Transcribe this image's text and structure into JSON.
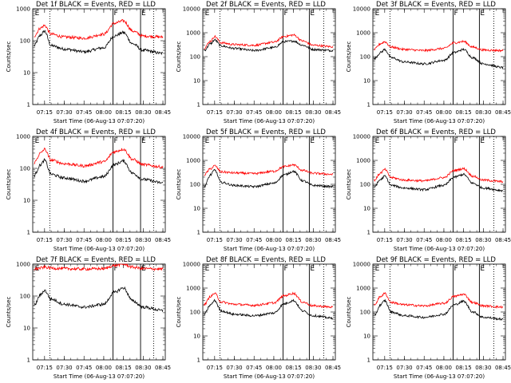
{
  "figure": {
    "start_time_label": "Start Time (06-Aug-13 07:07:20)",
    "ylabel": "Counts/sec",
    "colors": {
      "events": "#000000",
      "lld": "#ff0000",
      "axes": "#000000",
      "background": "#ffffff"
    }
  },
  "chart_data": [
    {
      "type": "line",
      "title": "Det 1f BLACK = Events, RED = LLD",
      "xlabel": "Start Time (06-Aug-13 07:07:20)",
      "ylabel": "Counts/sec",
      "xlim": [
        7.1,
        8.78
      ],
      "ylim": [
        1,
        1000
      ],
      "yscale": "log",
      "ytick_labels": [
        "1",
        "10",
        "100",
        "1000"
      ],
      "xtick_labels": [
        "07:15",
        "07:30",
        "07:45",
        "08:00",
        "08:15",
        "08:30",
        "08:45"
      ],
      "time_markers": [
        {
          "label": "E",
          "time": "07:07"
        },
        {
          "label": "F",
          "time": "08:07"
        },
        {
          "label": "E",
          "time": "08:28"
        }
      ],
      "solid_lines": [
        "08:07",
        "08:28"
      ],
      "dotted_lines": [
        "07:19",
        "08:38"
      ],
      "series": [
        {
          "name": "Events",
          "color": "#000000",
          "x": [
            "07:07",
            "07:12",
            "07:15",
            "07:20",
            "07:30",
            "07:45",
            "08:00",
            "08:08",
            "08:15",
            "08:22",
            "08:30",
            "08:45"
          ],
          "values": [
            70,
            150,
            200,
            70,
            55,
            45,
            60,
            140,
            180,
            80,
            50,
            40
          ]
        },
        {
          "name": "LLD",
          "color": "#ff0000",
          "x": [
            "07:07",
            "07:12",
            "07:15",
            "07:20",
            "07:30",
            "07:45",
            "08:00",
            "08:08",
            "08:15",
            "08:22",
            "08:30",
            "08:45"
          ],
          "values": [
            140,
            250,
            300,
            160,
            130,
            120,
            160,
            350,
            420,
            200,
            140,
            130
          ]
        }
      ]
    },
    {
      "type": "line",
      "title": "Det 2f BLACK = Events, RED = LLD",
      "xlabel": "Start Time (06-Aug-13 07:07:20)",
      "ylabel": "Counts/sec",
      "xlim": [
        7.1,
        8.78
      ],
      "ylim": [
        1,
        10000
      ],
      "yscale": "log",
      "ytick_labels": [
        "1",
        "10",
        "100",
        "1000",
        "10000"
      ],
      "xtick_labels": [
        "07:15",
        "07:30",
        "07:45",
        "08:00",
        "08:15",
        "08:30",
        "08:45"
      ],
      "time_markers": [
        {
          "label": "E",
          "time": "07:07"
        },
        {
          "label": "F",
          "time": "08:07"
        },
        {
          "label": "E",
          "time": "08:27"
        }
      ],
      "solid_lines": [
        "08:07",
        "08:27"
      ],
      "dotted_lines": [
        "07:19",
        "08:38"
      ],
      "series": [
        {
          "name": "Events",
          "color": "#000000",
          "x": [
            "07:07",
            "07:12",
            "07:15",
            "07:20",
            "07:30",
            "07:45",
            "08:00",
            "08:08",
            "08:15",
            "08:22",
            "08:30",
            "08:45"
          ],
          "values": [
            180,
            350,
            500,
            280,
            220,
            180,
            240,
            420,
            450,
            300,
            200,
            180
          ]
        },
        {
          "name": "LLD",
          "color": "#ff0000",
          "x": [
            "07:07",
            "07:12",
            "07:15",
            "07:20",
            "07:30",
            "07:45",
            "08:00",
            "08:08",
            "08:15",
            "08:22",
            "08:30",
            "08:45"
          ],
          "values": [
            230,
            450,
            700,
            380,
            320,
            300,
            400,
            700,
            800,
            450,
            300,
            260
          ]
        }
      ]
    },
    {
      "type": "line",
      "title": "Det 3f BLACK = Events, RED = LLD",
      "xlabel": "Start Time (06-Aug-13 07:07:20)",
      "ylabel": "Counts/sec",
      "xlim": [
        7.1,
        8.78
      ],
      "ylim": [
        1,
        10000
      ],
      "yscale": "log",
      "ytick_labels": [
        "1",
        "10",
        "100",
        "1000",
        "10000"
      ],
      "xtick_labels": [
        "07:15",
        "07:30",
        "07:45",
        "08:00",
        "08:15",
        "08:30",
        "08:45"
      ],
      "time_markers": [
        {
          "label": "E",
          "time": "07:07"
        },
        {
          "label": "F",
          "time": "08:07"
        },
        {
          "label": "E",
          "time": "08:27"
        }
      ],
      "solid_lines": [
        "08:07",
        "08:27"
      ],
      "dotted_lines": [
        "07:19",
        "08:38"
      ],
      "series": [
        {
          "name": "Events",
          "color": "#000000",
          "x": [
            "07:07",
            "07:12",
            "07:15",
            "07:20",
            "07:30",
            "07:45",
            "08:00",
            "08:08",
            "08:15",
            "08:22",
            "08:30",
            "08:45"
          ],
          "values": [
            80,
            150,
            200,
            90,
            60,
            50,
            70,
            150,
            200,
            90,
            50,
            35
          ]
        },
        {
          "name": "LLD",
          "color": "#ff0000",
          "x": [
            "07:07",
            "07:12",
            "07:15",
            "07:20",
            "07:30",
            "07:45",
            "08:00",
            "08:08",
            "08:15",
            "08:22",
            "08:30",
            "08:45"
          ],
          "values": [
            200,
            350,
            420,
            250,
            200,
            180,
            220,
            380,
            430,
            250,
            190,
            180
          ]
        }
      ]
    },
    {
      "type": "line",
      "title": "Det 4f BLACK = Events, RED = LLD",
      "xlabel": "Start Time (06-Aug-13 07:07:20)",
      "ylabel": "Counts/sec",
      "xlim": [
        7.1,
        8.78
      ],
      "ylim": [
        1,
        1000
      ],
      "yscale": "log",
      "ytick_labels": [
        "1",
        "10",
        "100",
        "1000"
      ],
      "xtick_labels": [
        "07:15",
        "07:30",
        "07:45",
        "08:00",
        "08:15",
        "08:30",
        "08:45"
      ],
      "time_markers": [
        {
          "label": "E",
          "time": "07:07"
        },
        {
          "label": "F",
          "time": "08:07"
        },
        {
          "label": "E",
          "time": "08:28"
        }
      ],
      "solid_lines": [
        "08:07",
        "08:28"
      ],
      "dotted_lines": [
        "07:19",
        "08:38"
      ],
      "series": [
        {
          "name": "Events",
          "color": "#000000",
          "x": [
            "07:07",
            "07:12",
            "07:15",
            "07:20",
            "07:30",
            "07:45",
            "08:00",
            "08:08",
            "08:15",
            "08:22",
            "08:30",
            "08:45"
          ],
          "values": [
            60,
            130,
            180,
            65,
            50,
            40,
            55,
            130,
            170,
            70,
            45,
            35
          ]
        },
        {
          "name": "LLD",
          "color": "#ff0000",
          "x": [
            "07:07",
            "07:12",
            "07:15",
            "07:20",
            "07:30",
            "07:45",
            "08:00",
            "08:08",
            "08:15",
            "08:22",
            "08:30",
            "08:45"
          ],
          "values": [
            150,
            300,
            400,
            180,
            140,
            120,
            160,
            330,
            400,
            190,
            130,
            110
          ]
        }
      ]
    },
    {
      "type": "line",
      "title": "Det 5f BLACK = Events, RED = LLD",
      "xlabel": "Start Time (06-Aug-13 07:07:20)",
      "ylabel": "Counts/sec",
      "xlim": [
        7.1,
        8.78
      ],
      "ylim": [
        1,
        10000
      ],
      "yscale": "log",
      "ytick_labels": [
        "1",
        "10",
        "100",
        "1000",
        "10000"
      ],
      "xtick_labels": [
        "07:15",
        "07:30",
        "07:45",
        "08:00",
        "08:15",
        "08:30",
        "08:45"
      ],
      "time_markers": [
        {
          "label": "E",
          "time": "07:07"
        },
        {
          "label": "F",
          "time": "08:07"
        },
        {
          "label": "E",
          "time": "08:27"
        }
      ],
      "solid_lines": [
        "08:07",
        "08:27"
      ],
      "dotted_lines": [
        "07:19",
        "08:38"
      ],
      "series": [
        {
          "name": "Events",
          "color": "#000000",
          "x": [
            "07:07",
            "07:12",
            "07:15",
            "07:20",
            "07:30",
            "07:45",
            "08:00",
            "08:08",
            "08:15",
            "08:22",
            "08:30",
            "08:45"
          ],
          "values": [
            80,
            250,
            400,
            120,
            90,
            80,
            110,
            250,
            350,
            140,
            90,
            80
          ]
        },
        {
          "name": "LLD",
          "color": "#ff0000",
          "x": [
            "07:07",
            "07:12",
            "07:15",
            "07:20",
            "07:30",
            "07:45",
            "08:00",
            "08:08",
            "08:15",
            "08:22",
            "08:30",
            "08:45"
          ],
          "values": [
            250,
            450,
            600,
            330,
            300,
            280,
            350,
            550,
            650,
            380,
            290,
            260
          ]
        }
      ]
    },
    {
      "type": "line",
      "title": "Det 6f BLACK = Events, RED = LLD",
      "xlabel": "Start Time (06-Aug-13 07:07:20)",
      "ylabel": "Counts/sec",
      "xlim": [
        7.1,
        8.78
      ],
      "ylim": [
        1,
        10000
      ],
      "yscale": "log",
      "ytick_labels": [
        "1",
        "10",
        "100",
        "1000",
        "10000"
      ],
      "xtick_labels": [
        "07:15",
        "07:30",
        "07:45",
        "08:00",
        "08:15",
        "08:30",
        "08:45"
      ],
      "time_markers": [
        {
          "label": "E",
          "time": "07:07"
        },
        {
          "label": "F",
          "time": "08:07"
        },
        {
          "label": "E",
          "time": "08:27"
        }
      ],
      "solid_lines": [
        "08:07",
        "08:27"
      ],
      "dotted_lines": [
        "07:19",
        "08:38"
      ],
      "series": [
        {
          "name": "Events",
          "color": "#000000",
          "x": [
            "07:07",
            "07:12",
            "07:15",
            "07:20",
            "07:30",
            "07:45",
            "08:00",
            "08:08",
            "08:15",
            "08:22",
            "08:30",
            "08:45"
          ],
          "values": [
            80,
            160,
            220,
            90,
            70,
            60,
            90,
            200,
            260,
            110,
            70,
            55
          ]
        },
        {
          "name": "LLD",
          "color": "#ff0000",
          "x": [
            "07:07",
            "07:12",
            "07:15",
            "07:20",
            "07:30",
            "07:45",
            "08:00",
            "08:08",
            "08:15",
            "08:22",
            "08:30",
            "08:45"
          ],
          "values": [
            150,
            300,
            420,
            190,
            150,
            140,
            190,
            380,
            450,
            220,
            150,
            130
          ]
        }
      ]
    },
    {
      "type": "line",
      "title": "Det 7f BLACK = Events, RED = LLD",
      "xlabel": "Start Time (06-Aug-13 07:07:20)",
      "ylabel": "Counts/sec",
      "xlim": [
        7.1,
        8.78
      ],
      "ylim": [
        1,
        1000
      ],
      "yscale": "log",
      "ytick_labels": [
        "1",
        "10",
        "100",
        "1000"
      ],
      "xtick_labels": [
        "07:15",
        "07:30",
        "07:45",
        "08:00",
        "08:15",
        "08:30",
        "08:45"
      ],
      "time_markers": [
        {
          "label": "E",
          "time": "07:07"
        },
        {
          "label": "F",
          "time": "08:07"
        },
        {
          "label": "E",
          "time": "08:28"
        }
      ],
      "solid_lines": [
        "08:07",
        "08:28"
      ],
      "dotted_lines": [
        "07:19",
        "08:38"
      ],
      "series": [
        {
          "name": "Events",
          "color": "#000000",
          "x": [
            "07:07",
            "07:12",
            "07:15",
            "07:20",
            "07:30",
            "07:45",
            "08:00",
            "08:08",
            "08:15",
            "08:22",
            "08:30",
            "08:45"
          ],
          "values": [
            50,
            110,
            150,
            80,
            55,
            45,
            55,
            130,
            180,
            70,
            45,
            35
          ]
        },
        {
          "name": "LLD",
          "color": "#ff0000",
          "x": [
            "07:07",
            "07:12",
            "07:15",
            "07:20",
            "07:30",
            "07:45",
            "08:00",
            "08:08",
            "08:15",
            "08:22",
            "08:30",
            "08:45"
          ],
          "values": [
            700,
            750,
            800,
            750,
            720,
            700,
            720,
            900,
            1000,
            800,
            720,
            700
          ]
        }
      ]
    },
    {
      "type": "line",
      "title": "Det 8f BLACK = Events, RED = LLD",
      "xlabel": "Start Time (06-Aug-13 07:07:20)",
      "ylabel": "Counts/sec",
      "xlim": [
        7.1,
        8.78
      ],
      "ylim": [
        1,
        10000
      ],
      "yscale": "log",
      "ytick_labels": [
        "1",
        "10",
        "100",
        "1000",
        "10000"
      ],
      "xtick_labels": [
        "07:15",
        "07:30",
        "07:45",
        "08:00",
        "08:15",
        "08:30",
        "08:45"
      ],
      "time_markers": [
        {
          "label": "E",
          "time": "07:07"
        },
        {
          "label": "F",
          "time": "08:07"
        },
        {
          "label": "E",
          "time": "08:27"
        }
      ],
      "solid_lines": [
        "08:07",
        "08:27"
      ],
      "dotted_lines": [
        "07:19",
        "08:38"
      ],
      "series": [
        {
          "name": "Events",
          "color": "#000000",
          "x": [
            "07:07",
            "07:12",
            "07:15",
            "07:20",
            "07:30",
            "07:45",
            "08:00",
            "08:08",
            "08:15",
            "08:22",
            "08:30",
            "08:45"
          ],
          "values": [
            80,
            200,
            300,
            110,
            80,
            70,
            90,
            220,
            300,
            110,
            70,
            55
          ]
        },
        {
          "name": "LLD",
          "color": "#ff0000",
          "x": [
            "07:07",
            "07:12",
            "07:15",
            "07:20",
            "07:30",
            "07:45",
            "08:00",
            "08:08",
            "08:15",
            "08:22",
            "08:30",
            "08:45"
          ],
          "values": [
            200,
            450,
            600,
            260,
            210,
            190,
            240,
            480,
            600,
            260,
            180,
            160
          ]
        }
      ]
    },
    {
      "type": "line",
      "title": "Det 9f BLACK = Events, RED = LLD",
      "xlabel": "Start Time (06-Aug-13 07:07:20)",
      "ylabel": "Counts/sec",
      "xlim": [
        7.1,
        8.78
      ],
      "ylim": [
        1,
        10000
      ],
      "yscale": "log",
      "ytick_labels": [
        "1",
        "10",
        "100",
        "1000",
        "10000"
      ],
      "xtick_labels": [
        "07:15",
        "07:30",
        "07:45",
        "08:00",
        "08:15",
        "08:30",
        "08:45"
      ],
      "time_markers": [
        {
          "label": "E",
          "time": "07:07"
        },
        {
          "label": "F",
          "time": "08:07"
        },
        {
          "label": "E",
          "time": "08:27"
        }
      ],
      "solid_lines": [
        "08:07",
        "08:27"
      ],
      "dotted_lines": [
        "07:19",
        "08:38"
      ],
      "series": [
        {
          "name": "Events",
          "color": "#000000",
          "x": [
            "07:07",
            "07:12",
            "07:15",
            "07:20",
            "07:30",
            "07:45",
            "08:00",
            "08:08",
            "08:15",
            "08:22",
            "08:30",
            "08:45"
          ],
          "values": [
            70,
            200,
            300,
            100,
            70,
            60,
            80,
            200,
            280,
            100,
            60,
            50
          ]
        },
        {
          "name": "LLD",
          "color": "#ff0000",
          "x": [
            "07:07",
            "07:12",
            "07:15",
            "07:20",
            "07:30",
            "07:45",
            "08:00",
            "08:08",
            "08:15",
            "08:22",
            "08:30",
            "08:45"
          ],
          "values": [
            200,
            450,
            600,
            250,
            200,
            180,
            230,
            450,
            550,
            250,
            180,
            160
          ]
        }
      ]
    }
  ]
}
